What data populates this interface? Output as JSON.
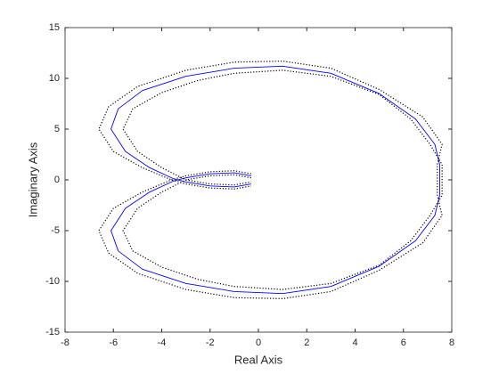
{
  "chart_data": {
    "type": "line",
    "xlabel": "Real Axis",
    "ylabel": "Imaginary Axis",
    "xlim": [
      -8,
      8
    ],
    "ylim": [
      -15,
      15
    ],
    "xticks": [
      -8,
      -6,
      -4,
      -2,
      0,
      2,
      4,
      6,
      8
    ],
    "yticks": [
      -15,
      -10,
      -5,
      0,
      5,
      10,
      15
    ],
    "series": [
      {
        "color": "#0000ff",
        "dash": "solid",
        "x": [
          -0.3,
          -1,
          -2,
          -3,
          -3.5,
          -4.5,
          -5.5,
          -6.1,
          -5.8,
          -4.8,
          -3,
          -1,
          1,
          3,
          5,
          6.5,
          7.3,
          7.5,
          7.5,
          7.3,
          6.5,
          5,
          3,
          1,
          -1,
          -3,
          -4.8,
          -5.8,
          -6.1,
          -5.5,
          -4.5,
          -3.5,
          -3,
          -2,
          -1,
          -0.3
        ],
        "values": [
          0.4,
          0.7,
          0.6,
          0.2,
          -0.1,
          -1.2,
          -2.8,
          -5,
          -7,
          -8.8,
          -10.2,
          -11,
          -11.2,
          -10.5,
          -8.5,
          -6,
          -3.5,
          -1.5,
          1.5,
          3.5,
          6,
          8.5,
          10.5,
          11.2,
          11,
          10.2,
          8.8,
          7,
          5,
          2.8,
          1.2,
          0.1,
          -0.2,
          -0.6,
          -0.7,
          -0.4
        ]
      },
      {
        "color": "#000000",
        "dash": "dotted",
        "x": [
          -0.3,
          -1,
          -2,
          -3,
          -3.6,
          -4.8,
          -6,
          -6.6,
          -6.2,
          -5,
          -3,
          -1,
          1,
          3,
          5,
          6.8,
          7.6,
          7.4,
          7.4,
          7.6,
          6.8,
          5,
          3,
          1,
          -1,
          -3,
          -5,
          -6.2,
          -6.6,
          -6,
          -4.8,
          -3.6,
          -3,
          -2,
          -1,
          -0.3
        ],
        "values": [
          0.6,
          0.9,
          0.8,
          0.4,
          0,
          -1.2,
          -2.8,
          -5,
          -7.2,
          -9.2,
          -10.8,
          -11.6,
          -11.7,
          -11,
          -8.9,
          -6.2,
          -3.5,
          -1.5,
          1.5,
          3.5,
          6.2,
          8.9,
          11,
          11.7,
          11.6,
          10.8,
          9.2,
          7.2,
          5,
          2.8,
          1.2,
          0,
          -0.4,
          -0.8,
          -0.9,
          -0.6
        ]
      },
      {
        "color": "#000000",
        "dash": "dotted",
        "x": [
          -0.3,
          -1,
          -2,
          -3,
          -4,
          -5,
          -5.6,
          -5.2,
          -4,
          -2.5,
          -1,
          1,
          3,
          5,
          6.3,
          7.1,
          7.6,
          7.6,
          7.1,
          6.3,
          5,
          3,
          1,
          -1,
          -2.5,
          -4,
          -5.2,
          -5.6,
          -5,
          -4,
          -3,
          -2,
          -1,
          -0.3
        ],
        "values": [
          0.2,
          0.5,
          0.4,
          0,
          -1.2,
          -2.8,
          -5,
          -7,
          -8.6,
          -9.8,
          -10.5,
          -10.8,
          -10.2,
          -8.4,
          -6,
          -3.5,
          -1.5,
          1.5,
          3.5,
          6,
          8.4,
          10.2,
          10.8,
          10.5,
          9.8,
          8.6,
          7,
          5,
          2.8,
          1.2,
          0,
          -0.4,
          -0.5,
          -0.2
        ]
      }
    ]
  }
}
